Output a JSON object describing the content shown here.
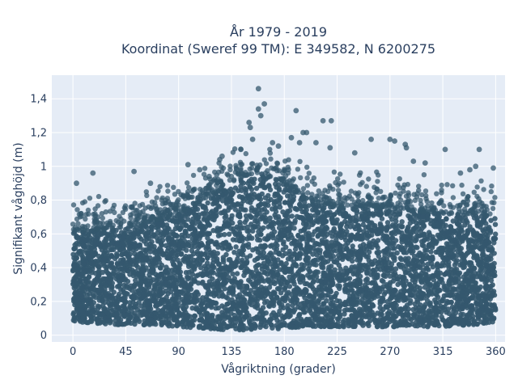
{
  "chart_data": {
    "type": "scatter",
    "title_line1": "År 1979 - 2019",
    "title_line2": "Koordinat (Sweref 99 TM): E 349582, N 6200275",
    "xlabel": "Vågriktning (grader)",
    "ylabel": "Signifikant våghöjd (m)",
    "xlim": [
      -18,
      368
    ],
    "ylim": [
      -0.04,
      1.54
    ],
    "x_ticks": [
      0,
      45,
      90,
      135,
      180,
      225,
      270,
      315,
      360
    ],
    "x_tick_labels": [
      "0",
      "45",
      "90",
      "135",
      "180",
      "225",
      "270",
      "315",
      "360"
    ],
    "y_ticks": [
      0,
      0.2,
      0.4,
      0.6,
      0.8,
      1.0,
      1.2,
      1.4
    ],
    "y_tick_labels": [
      "0",
      "0,2",
      "0,4",
      "0,6",
      "0,8",
      "1",
      "1,2",
      "1,4"
    ],
    "grid": true,
    "marker_color": "#34586e",
    "plot_background": "#e5ecf6",
    "dense_envelope": [
      [
        0,
        0.08,
        0.62
      ],
      [
        20,
        0.07,
        0.62
      ],
      [
        45,
        0.06,
        0.64
      ],
      [
        70,
        0.06,
        0.68
      ],
      [
        90,
        0.05,
        0.72
      ],
      [
        110,
        0.04,
        0.8
      ],
      [
        135,
        0.03,
        0.9
      ],
      [
        160,
        0.03,
        0.96
      ],
      [
        180,
        0.04,
        0.9
      ],
      [
        200,
        0.05,
        0.8
      ],
      [
        225,
        0.05,
        0.76
      ],
      [
        250,
        0.05,
        0.76
      ],
      [
        270,
        0.05,
        0.76
      ],
      [
        290,
        0.05,
        0.74
      ],
      [
        315,
        0.05,
        0.72
      ],
      [
        340,
        0.06,
        0.72
      ],
      [
        360,
        0.08,
        0.7
      ]
    ],
    "outliers": [
      {
        "x": 158,
        "y": 1.46
      },
      {
        "x": 163,
        "y": 1.37
      },
      {
        "x": 158,
        "y": 1.34
      },
      {
        "x": 160,
        "y": 1.3
      },
      {
        "x": 150,
        "y": 1.26
      },
      {
        "x": 151,
        "y": 1.23
      },
      {
        "x": 153,
        "y": 1.16
      },
      {
        "x": 190,
        "y": 1.33
      },
      {
        "x": 196,
        "y": 1.2
      },
      {
        "x": 199,
        "y": 1.2
      },
      {
        "x": 213,
        "y": 1.27
      },
      {
        "x": 220,
        "y": 1.27
      },
      {
        "x": 186,
        "y": 1.17
      },
      {
        "x": 193,
        "y": 1.14
      },
      {
        "x": 207,
        "y": 1.14
      },
      {
        "x": 219,
        "y": 1.11
      },
      {
        "x": 270,
        "y": 1.16
      },
      {
        "x": 274,
        "y": 1.15
      },
      {
        "x": 254,
        "y": 1.16
      },
      {
        "x": 283,
        "y": 1.13
      },
      {
        "x": 284,
        "y": 1.11
      },
      {
        "x": 317,
        "y": 1.1
      },
      {
        "x": 346,
        "y": 1.1
      },
      {
        "x": 358,
        "y": 0.99
      },
      {
        "x": 17,
        "y": 0.96
      },
      {
        "x": 52,
        "y": 0.97
      },
      {
        "x": 127,
        "y": 1.06
      },
      {
        "x": 125,
        "y": 1.04
      },
      {
        "x": 98,
        "y": 1.01
      },
      {
        "x": 3,
        "y": 0.9
      },
      {
        "x": 343,
        "y": 1.0
      },
      {
        "x": 338,
        "y": 0.98
      },
      {
        "x": 330,
        "y": 0.96
      },
      {
        "x": 300,
        "y": 1.02
      },
      {
        "x": 290,
        "y": 1.03
      },
      {
        "x": 240,
        "y": 1.08
      },
      {
        "x": 175,
        "y": 1.12
      },
      {
        "x": 170,
        "y": 1.14
      },
      {
        "x": 143,
        "y": 1.1
      },
      {
        "x": 108,
        "y": 0.98
      },
      {
        "x": 116,
        "y": 0.94
      },
      {
        "x": 66,
        "y": 0.9
      }
    ]
  }
}
